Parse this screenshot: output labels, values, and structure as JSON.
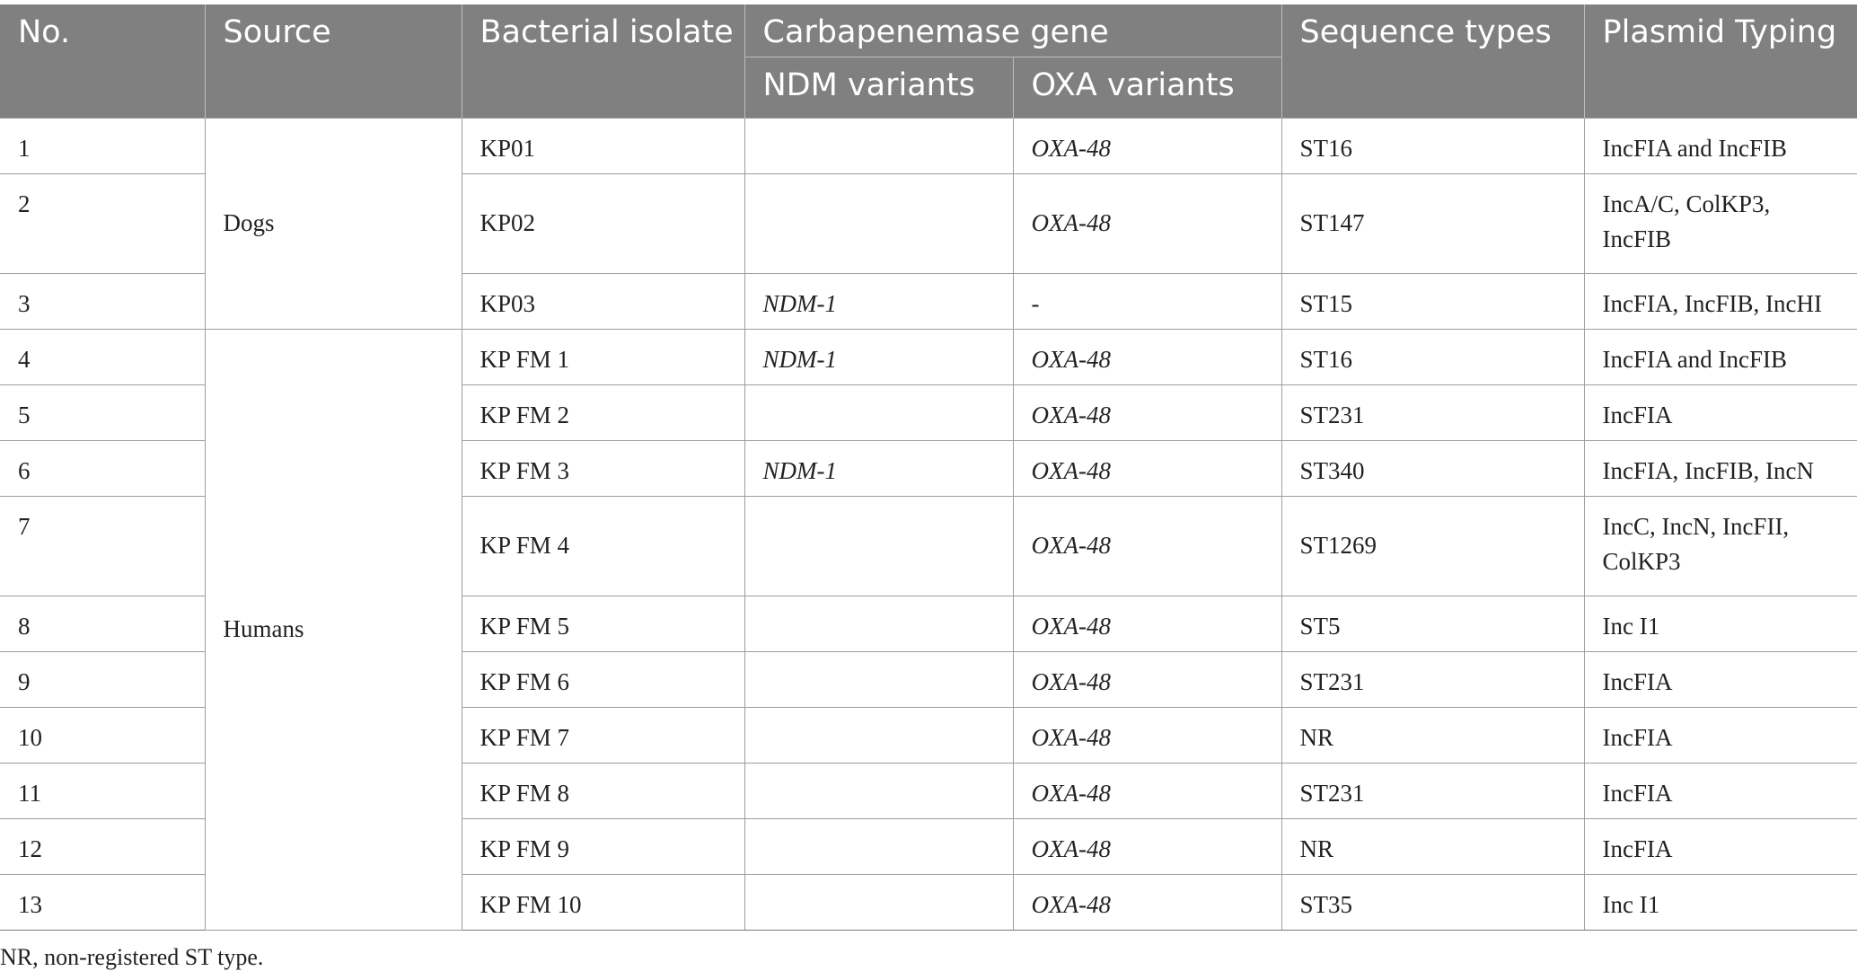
{
  "table": {
    "headers": {
      "no": "No.",
      "source": "Source",
      "isolate": "Bacterial isolate",
      "carbapenemase": "Carbapenemase gene",
      "ndm": "NDM variants",
      "oxa": "OXA variants",
      "st": "Sequence types",
      "plasmid": "Plasmid Typing"
    },
    "groups": {
      "dogs": "Dogs",
      "humans": "Humans"
    },
    "rows": [
      {
        "no": "1",
        "isolate": "KP01",
        "ndm": "",
        "oxa": "OXA-48",
        "st": "ST16",
        "plasmid_line1": "IncFIA and IncFIB",
        "plasmid_line2": ""
      },
      {
        "no": "2",
        "isolate": "KP02",
        "ndm": "",
        "oxa": "OXA-48",
        "st": "ST147",
        "plasmid_line1": "IncA/C, ColKP3,",
        "plasmid_line2": "IncFIB"
      },
      {
        "no": "3",
        "isolate": "KP03",
        "ndm": "NDM-1",
        "oxa": "-",
        "st": "ST15",
        "plasmid_line1": "IncFIA, IncFIB, IncHI",
        "plasmid_line2": ""
      },
      {
        "no": "4",
        "isolate": "KP FM 1",
        "ndm": "NDM-1",
        "oxa": "OXA-48",
        "st": "ST16",
        "plasmid_line1": "IncFIA and IncFIB",
        "plasmid_line2": ""
      },
      {
        "no": "5",
        "isolate": "KP FM 2",
        "ndm": "",
        "oxa": "OXA-48",
        "st": "ST231",
        "plasmid_line1": "IncFIA",
        "plasmid_line2": ""
      },
      {
        "no": "6",
        "isolate": "KP FM 3",
        "ndm": "NDM-1",
        "oxa": "OXA-48",
        "st": "ST340",
        "plasmid_line1": "IncFIA, IncFIB, IncN",
        "plasmid_line2": ""
      },
      {
        "no": "7",
        "isolate": "KP FM 4",
        "ndm": "",
        "oxa": "OXA-48",
        "st": "ST1269",
        "plasmid_line1": "IncC, IncN, IncFII,",
        "plasmid_line2": "ColKP3"
      },
      {
        "no": "8",
        "isolate": "KP FM 5",
        "ndm": "",
        "oxa": "OXA-48",
        "st": "ST5",
        "plasmid_line1": "Inc I1",
        "plasmid_line2": ""
      },
      {
        "no": "9",
        "isolate": "KP FM 6",
        "ndm": "",
        "oxa": "OXA-48",
        "st": "ST231",
        "plasmid_line1": "IncFIA",
        "plasmid_line2": ""
      },
      {
        "no": "10",
        "isolate": "KP FM 7",
        "ndm": "",
        "oxa": "OXA-48",
        "st": "NR",
        "plasmid_line1": "IncFIA",
        "plasmid_line2": ""
      },
      {
        "no": "11",
        "isolate": "KP FM 8",
        "ndm": "",
        "oxa": "OXA-48",
        "st": "ST231",
        "plasmid_line1": "IncFIA",
        "plasmid_line2": ""
      },
      {
        "no": "12",
        "isolate": "KP FM 9",
        "ndm": "",
        "oxa": "OXA-48",
        "st": "NR",
        "plasmid_line1": "IncFIA",
        "plasmid_line2": ""
      },
      {
        "no": "13",
        "isolate": "KP FM 10",
        "ndm": "",
        "oxa": "OXA-48",
        "st": "ST35",
        "plasmid_line1": "Inc I1",
        "plasmid_line2": ""
      }
    ]
  },
  "footnote": "NR, non-registered ST type.",
  "colors": {
    "header_bg": "#808080",
    "header_text": "#ffffff",
    "body_text": "#222222",
    "grid": "#9e9e9e"
  }
}
